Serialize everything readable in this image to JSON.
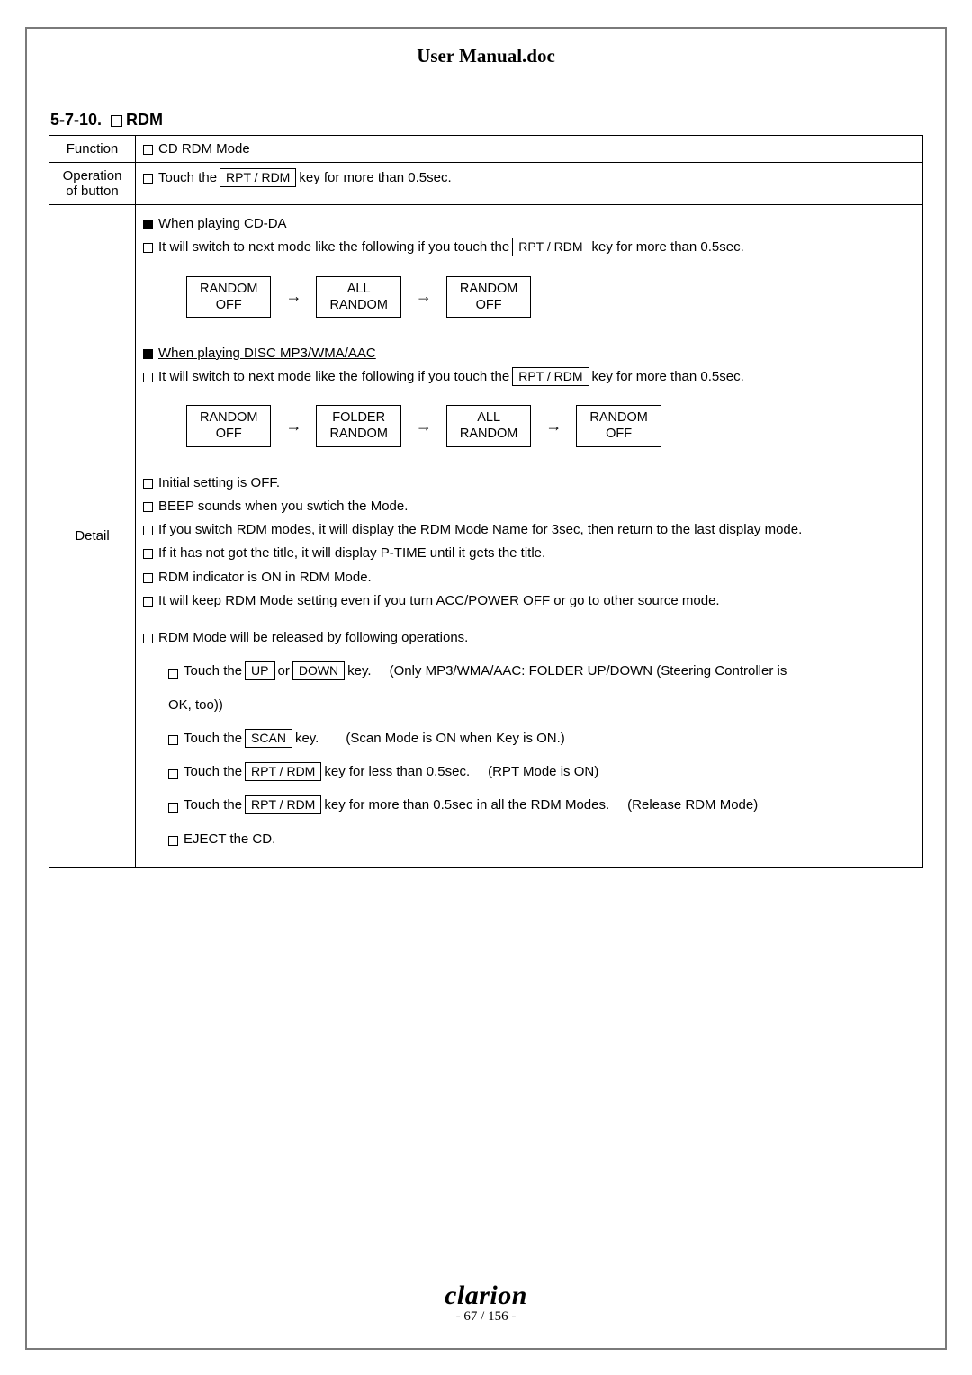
{
  "doc_title": "User Manual.doc",
  "section_number": "5-7-10.",
  "section_title": "RDM",
  "table": {
    "headers": {
      "function": "Function",
      "operation": "Operation of button",
      "detail": "Detail"
    },
    "function_text": "CD RDM Mode",
    "operation": {
      "prefix": "Touch the",
      "key": "RPT / RDM",
      "suffix": "key for more than 0.5sec."
    },
    "detail": {
      "cdda_header": "When playing CD-DA",
      "switch_line": {
        "prefix": "It will switch to next mode like the following if you touch the",
        "key": "RPT / RDM",
        "suffix": "key for more than 0.5sec."
      },
      "flow_cdda": [
        "RANDOM\nOFF",
        "ALL\nRANDOM",
        "RANDOM\nOFF"
      ],
      "mp3_header": "When playing DISC MP3/WMA/AAC",
      "flow_mp3": [
        "RANDOM\nOFF",
        "FOLDER\nRANDOM",
        "ALL\nRANDOM",
        "RANDOM\nOFF"
      ],
      "notes": [
        "Initial setting is OFF.",
        "BEEP sounds when you swtich the Mode.",
        "If you switch RDM modes, it will display the RDM Mode Name for 3sec, then return to the last display mode.",
        "If it has not got the title, it will display P-TIME until it gets the title.",
        "RDM indicator is ON in RDM Mode.",
        "It will keep RDM Mode setting even if you turn ACC/POWER OFF or go to other source mode."
      ],
      "release_header": "RDM Mode will be released by following operations.",
      "release": {
        "r1": {
          "pre": "Touch the",
          "key1": "UP",
          "mid1": "or",
          "key2": "DOWN",
          "mid2": "key.",
          "tail": "(Only MP3/WMA/AAC: FOLDER UP/DOWN (Steering Controller is",
          "tail2": "OK, too))"
        },
        "r2": {
          "pre": "Touch the",
          "key": "SCAN",
          "mid": "key.",
          "tail": "(Scan Mode is ON when Key is ON.)"
        },
        "r3": {
          "pre": "Touch the",
          "key": "RPT / RDM",
          "mid": "key for less than 0.5sec.",
          "tail": "(RPT Mode is ON)"
        },
        "r4": {
          "pre": "Touch the",
          "key": "RPT / RDM",
          "mid": "key for more than 0.5sec in all the RDM Modes.",
          "tail": "(Release RDM Mode)"
        },
        "r5": "EJECT the CD."
      }
    }
  },
  "footer": {
    "brand": "clarion",
    "page": "- 67 / 156 -"
  },
  "arrow_glyph": "→"
}
